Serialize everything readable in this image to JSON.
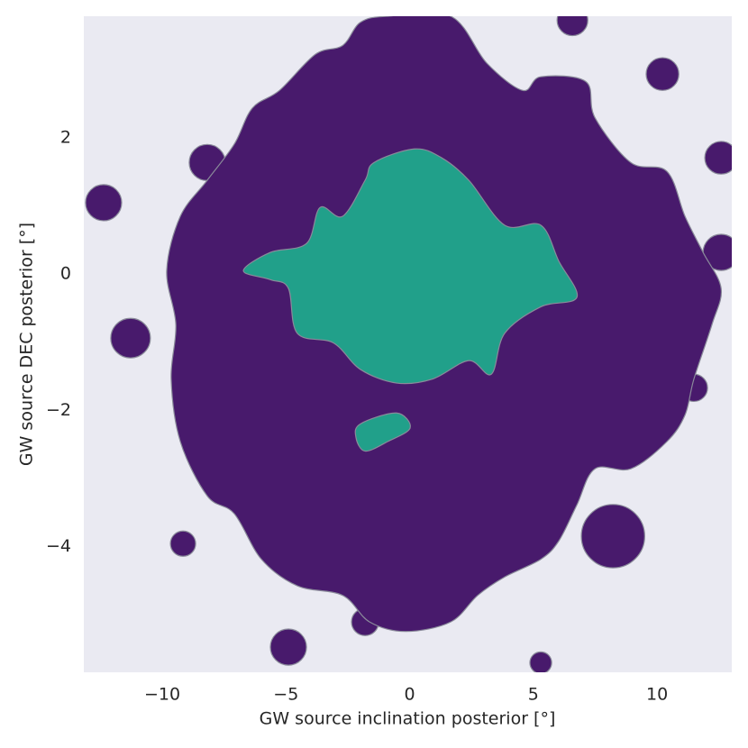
{
  "chart_data": {
    "type": "contour",
    "xlabel": "GW source inclination posterior [°]",
    "ylabel": "GW source DEC posterior [°]",
    "xlim": [
      -13.17,
      13.02
    ],
    "ylim": [
      -5.85,
      3.79
    ],
    "xticks": [
      {
        "value": -10,
        "label": "−10"
      },
      {
        "value": -5,
        "label": "−5"
      },
      0,
      5,
      10
    ],
    "yticks": [
      2,
      0,
      {
        "value": -2,
        "label": "−2"
      },
      {
        "value": -4,
        "label": "−4"
      }
    ],
    "background": "#eaeaf2",
    "edge_color": "#8a8a9a",
    "regions": [
      {
        "color": "#481a6c",
        "x": [
          -1.99,
          -0.89,
          1.66,
          3.12,
          4.57,
          5.3,
          7.12,
          7.49,
          8.94,
          10.4,
          11.13,
          11.86,
          12.59,
          12.22,
          11.49,
          11.13,
          10.4,
          8.94,
          7.49,
          6.76,
          6.03,
          5.3,
          3.84,
          2.75,
          1.66,
          -0.16,
          -1.62,
          -2.71,
          -4.54,
          -5.99,
          -7.09,
          -8.18,
          -9.27,
          -9.64,
          -9.45,
          -9.82,
          -9.27,
          -8.18,
          -7.09,
          -6.36,
          -5.26,
          -3.81,
          -2.71
        ],
        "y": [
          3.7,
          3.79,
          3.79,
          3.1,
          2.7,
          2.9,
          2.83,
          2.3,
          1.64,
          1.51,
          0.85,
          0.32,
          -0.21,
          -0.74,
          -1.54,
          -2.07,
          -2.46,
          -2.86,
          -2.86,
          -3.39,
          -3.92,
          -4.19,
          -4.45,
          -4.72,
          -5.11,
          -5.25,
          -5.11,
          -4.72,
          -4.58,
          -4.19,
          -3.52,
          -3.26,
          -2.46,
          -1.54,
          -0.74,
          0.05,
          0.85,
          1.38,
          1.91,
          2.44,
          2.7,
          3.23,
          3.36
        ]
      },
      {
        "color": "#21a08a",
        "x": [
          -1.44,
          0.2,
          1.29,
          2.39,
          3.84,
          5.3,
          6.03,
          6.76,
          5.3,
          3.84,
          3.3,
          2.39,
          0.93,
          -0.53,
          -1.99,
          -3.08,
          -4.54,
          -4.9,
          -5.63,
          -6.72,
          -5.63,
          -4.17,
          -3.62,
          -2.71,
          -1.8
        ],
        "y": [
          1.64,
          1.84,
          1.71,
          1.38,
          0.72,
          0.72,
          0.19,
          -0.34,
          -0.48,
          -0.87,
          -1.47,
          -1.27,
          -1.54,
          -1.6,
          -1.4,
          -1.01,
          -0.87,
          -0.21,
          -0.08,
          0.05,
          0.32,
          0.45,
          0.98,
          0.85,
          1.38
        ]
      },
      {
        "color": "#21a08a",
        "x": [
          -1.99,
          -0.53,
          0.02,
          -0.89,
          -1.8,
          -2.17
        ],
        "y": [
          -2.2,
          -2.04,
          -2.26,
          -2.46,
          -2.6,
          -2.4
        ]
      }
    ],
    "spots": [
      {
        "color": "#481a6c",
        "x": 10.22,
        "y": 2.94,
        "r": 0.66
      },
      {
        "color": "#481a6c",
        "x": -4.9,
        "y": -5.48,
        "r": 0.73
      },
      {
        "color": "#481a6c",
        "x": -9.16,
        "y": -3.96,
        "r": 0.51
      },
      {
        "color": "#481a6c",
        "x": -11.28,
        "y": -0.94,
        "r": 0.8
      },
      {
        "color": "#481a6c",
        "x": -12.37,
        "y": 1.05,
        "r": 0.73
      },
      {
        "color": "#481a6c",
        "x": 6.58,
        "y": 3.73,
        "r": 0.62
      },
      {
        "color": "#481a6c",
        "x": 8.22,
        "y": -3.85,
        "r": 1.28
      },
      {
        "color": "#481a6c",
        "x": 12.59,
        "y": 1.71,
        "r": 0.66
      },
      {
        "color": "#481a6c",
        "x": 12.59,
        "y": 0.32,
        "r": 0.73
      },
      {
        "color": "#481a6c",
        "x": 11.49,
        "y": -1.67,
        "r": 0.55
      },
      {
        "color": "#481a6c",
        "x": -1.8,
        "y": -5.11,
        "r": 0.55
      },
      {
        "color": "#481a6c",
        "x": 5.3,
        "y": -5.71,
        "r": 0.44
      },
      {
        "color": "#481a6c",
        "x": -8.18,
        "y": 1.64,
        "r": 0.73
      }
    ]
  }
}
